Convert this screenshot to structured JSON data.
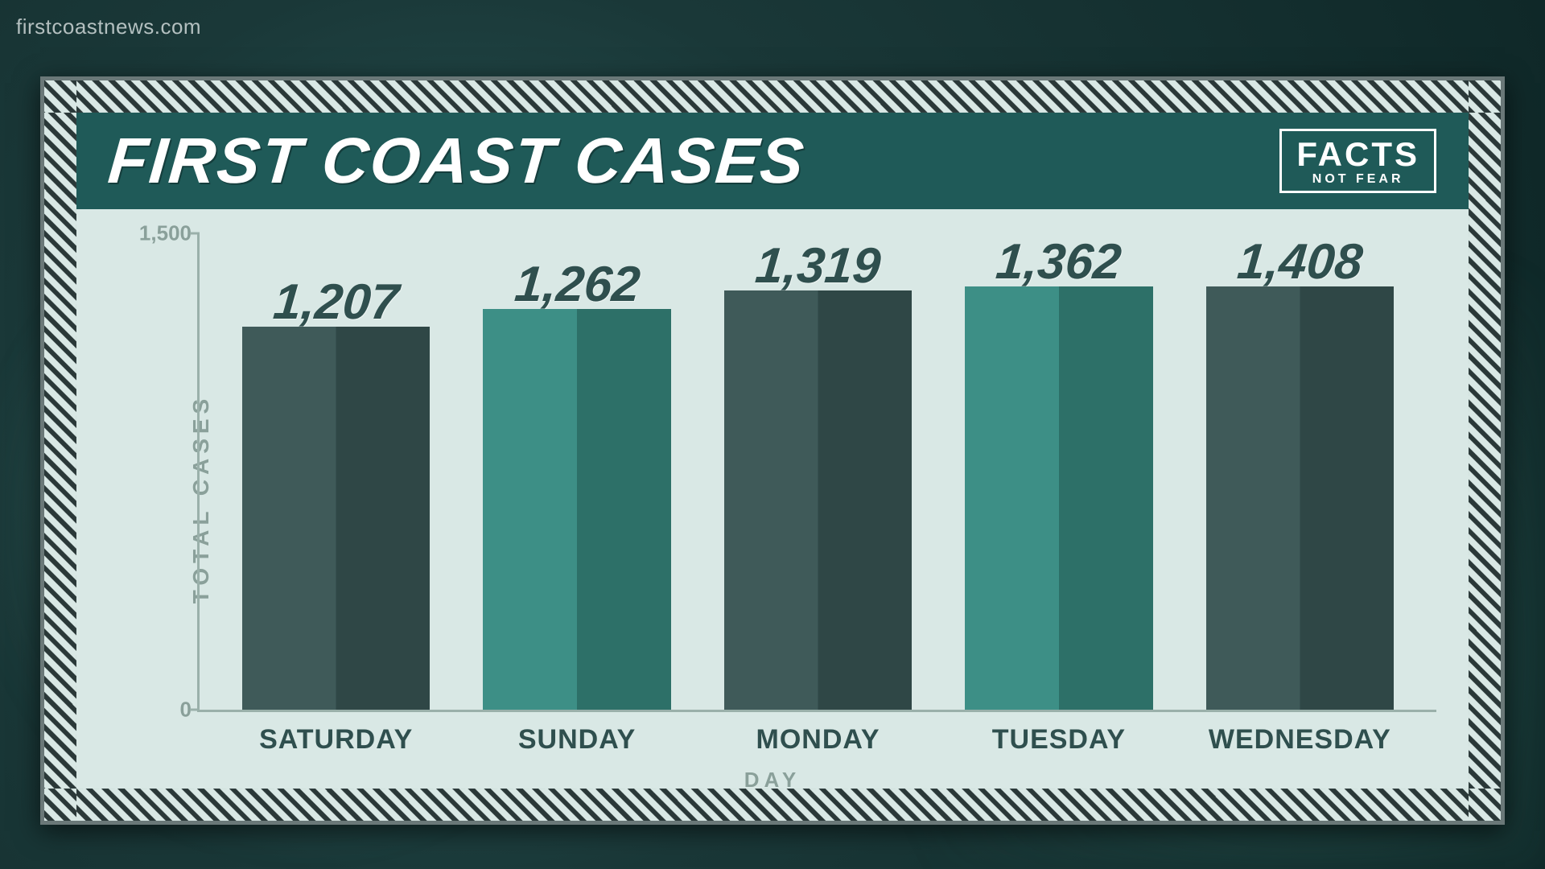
{
  "watermark": "firstcoastnews.com",
  "title": "FIRST COAST CASES",
  "badge": {
    "line1": "FACTS",
    "line2": "NOT FEAR"
  },
  "chart": {
    "type": "bar",
    "y_axis_label": "TOTAL CASES",
    "x_axis_label": "DAY",
    "ylim": [
      0,
      1500
    ],
    "yticks": [
      {
        "value": 0,
        "label": "0"
      },
      {
        "value": 1500,
        "label": "1,500"
      }
    ],
    "bar_width_pct": 78,
    "background_color": "#d9e8e5",
    "title_bar_color": "#1f5a58",
    "axis_color": "#9ab0aa",
    "label_color": "#8aa09a",
    "value_fontsize": 62,
    "day_fontsize": 34,
    "bar_colors": {
      "dark_a": "#3f5a59",
      "dark_b": "#2f4746",
      "teal_a": "#3d8f86",
      "teal_b": "#2d7068"
    },
    "bars": [
      {
        "day": "SATURDAY",
        "value": 1207,
        "label": "1,207",
        "color_scheme": "dark"
      },
      {
        "day": "SUNDAY",
        "value": 1262,
        "label": "1,262",
        "color_scheme": "teal"
      },
      {
        "day": "MONDAY",
        "value": 1319,
        "label": "1,319",
        "color_scheme": "dark"
      },
      {
        "day": "TUESDAY",
        "value": 1362,
        "label": "1,362",
        "color_scheme": "teal"
      },
      {
        "day": "WEDNESDAY",
        "value": 1408,
        "label": "1,408",
        "color_scheme": "dark"
      }
    ]
  }
}
